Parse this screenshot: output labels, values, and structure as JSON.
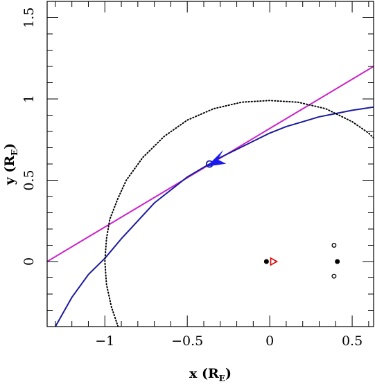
{
  "chart_data": {
    "type": "line",
    "xlabel": {
      "main": "x (R",
      "sub": "E",
      "close": ")"
    },
    "ylabel": {
      "main": "y (R",
      "sub": "E",
      "close": ")"
    },
    "xlim": [
      -1.35,
      0.63
    ],
    "ylim": [
      -0.4,
      1.6
    ],
    "xticks": [
      {
        "value": -1,
        "label": "−1"
      },
      {
        "value": -0.5,
        "label": "−0.5"
      },
      {
        "value": 0,
        "label": "0"
      },
      {
        "value": 0.5,
        "label": "0.5"
      }
    ],
    "yticks": [
      {
        "value": 0,
        "label": "0"
      },
      {
        "value": 0.5,
        "label": "0.5"
      },
      {
        "value": 1,
        "label": "1"
      },
      {
        "value": 1.5,
        "label": "1.5"
      }
    ],
    "grid": false,
    "series": [
      {
        "style": "solid",
        "color": "#cc22cc",
        "x": [
          -1.35,
          0.63
        ],
        "y": [
          0.0,
          1.2
        ]
      },
      {
        "style": "solid",
        "color": "#1a1a9e",
        "x": [
          -1.3,
          -1.2,
          -1.1,
          -1.0,
          -0.9,
          -0.8,
          -0.7,
          -0.6,
          -0.5,
          -0.4,
          -0.365,
          -0.3,
          -0.2,
          -0.1,
          0.0,
          0.1,
          0.2,
          0.3,
          0.4,
          0.5,
          0.63
        ],
        "y": [
          -0.4,
          -0.22,
          -0.08,
          0.02,
          0.14,
          0.25,
          0.36,
          0.44,
          0.52,
          0.58,
          0.6,
          0.64,
          0.69,
          0.74,
          0.79,
          0.83,
          0.86,
          0.89,
          0.91,
          0.93,
          0.95
        ]
      },
      {
        "style": "dotted",
        "color": "#000000",
        "x": [
          -0.92,
          -0.96,
          -0.99,
          -1.0,
          -0.99,
          -0.97,
          -0.92,
          -0.87,
          -0.77,
          -0.64,
          -0.5,
          -0.34,
          -0.17,
          0.0,
          0.17,
          0.34,
          0.5,
          0.6,
          0.63
        ],
        "y": [
          -0.4,
          -0.28,
          -0.14,
          0.0,
          0.14,
          0.26,
          0.39,
          0.5,
          0.64,
          0.77,
          0.87,
          0.94,
          0.98,
          0.99,
          0.98,
          0.94,
          0.86,
          0.79,
          0.76
        ]
      }
    ],
    "markers": [
      {
        "kind": "open-circle",
        "color": "#1a1a9e",
        "x": -0.365,
        "y": 0.6
      },
      {
        "kind": "arrow-head",
        "color": "#1a1aee",
        "x": -0.34,
        "y": 0.61
      },
      {
        "kind": "filled-dot",
        "color": "#000000",
        "x": -0.02,
        "y": 0.0
      },
      {
        "kind": "triangle",
        "color": "#e00000",
        "x": 0.01,
        "y": 0.0
      },
      {
        "kind": "open-dot",
        "color": "#000000",
        "x": 0.39,
        "y": 0.1
      },
      {
        "kind": "filled-dot",
        "color": "#000000",
        "x": 0.41,
        "y": 0.0
      },
      {
        "kind": "open-dot",
        "color": "#000000",
        "x": 0.39,
        "y": -0.09
      }
    ]
  }
}
